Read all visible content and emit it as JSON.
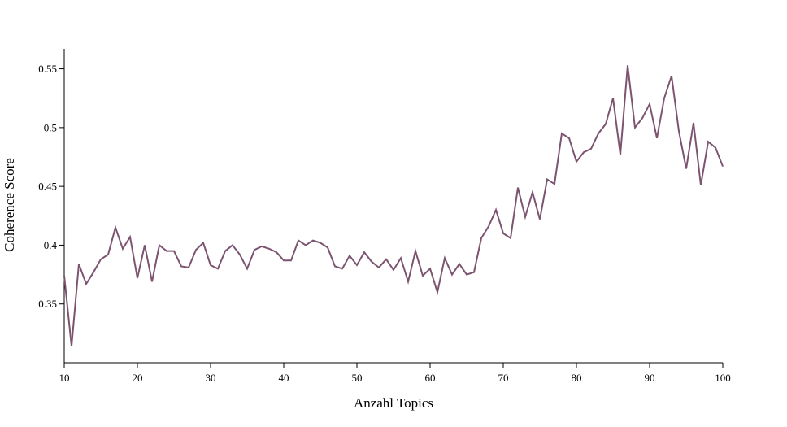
{
  "chart_data": {
    "type": "line",
    "title": "",
    "xlabel": "Anzahl Topics",
    "ylabel": "Coherence Score",
    "xlim": [
      10,
      100
    ],
    "ylim": [
      0.3,
      0.567
    ],
    "x_ticks": [
      10,
      20,
      30,
      40,
      50,
      60,
      70,
      80,
      90,
      100
    ],
    "y_ticks": [
      0.35,
      0.4,
      0.45,
      0.5,
      0.55
    ],
    "y_tick_labels": [
      "0.35",
      "0.4",
      "0.45",
      "0.5",
      "0.55"
    ],
    "grid": false,
    "legend": "none",
    "line_color": "#7d5470",
    "series": [
      {
        "x": [
          10,
          11,
          12,
          13,
          14,
          15,
          16,
          17,
          18,
          19,
          20,
          21,
          22,
          23,
          24,
          25,
          26,
          27,
          28,
          29,
          30,
          31,
          32,
          33,
          34,
          35,
          36,
          37,
          38,
          39,
          40,
          41,
          42,
          43,
          44,
          45,
          46,
          47,
          48,
          49,
          50,
          51,
          52,
          53,
          54,
          55,
          56,
          57,
          58,
          59,
          60,
          61,
          62,
          63,
          64,
          65,
          66,
          67,
          68,
          69,
          70,
          71,
          72,
          73,
          74,
          75,
          76,
          77,
          78,
          79,
          80,
          81,
          82,
          83,
          84,
          85,
          86,
          87,
          88,
          89,
          90,
          91,
          92,
          93,
          94,
          95,
          96,
          97,
          98,
          99,
          100
        ],
        "values": [
          0.374,
          0.314,
          0.384,
          0.367,
          0.377,
          0.388,
          0.392,
          0.415,
          0.397,
          0.407,
          0.372,
          0.4,
          0.369,
          0.4,
          0.395,
          0.395,
          0.382,
          0.381,
          0.396,
          0.402,
          0.383,
          0.38,
          0.395,
          0.4,
          0.392,
          0.38,
          0.396,
          0.399,
          0.397,
          0.394,
          0.387,
          0.387,
          0.404,
          0.4,
          0.404,
          0.402,
          0.398,
          0.382,
          0.38,
          0.391,
          0.383,
          0.394,
          0.386,
          0.381,
          0.388,
          0.379,
          0.389,
          0.369,
          0.395,
          0.374,
          0.38,
          0.36,
          0.389,
          0.375,
          0.384,
          0.375,
          0.377,
          0.406,
          0.416,
          0.43,
          0.41,
          0.406,
          0.449,
          0.424,
          0.445,
          0.422,
          0.456,
          0.452,
          0.495,
          0.491,
          0.471,
          0.479,
          0.482,
          0.495,
          0.503,
          0.525,
          0.477,
          0.553,
          0.5,
          0.508,
          0.52,
          0.491,
          0.525,
          0.544,
          0.497,
          0.465,
          0.504,
          0.451,
          0.488,
          0.483,
          0.467
        ]
      }
    ]
  }
}
